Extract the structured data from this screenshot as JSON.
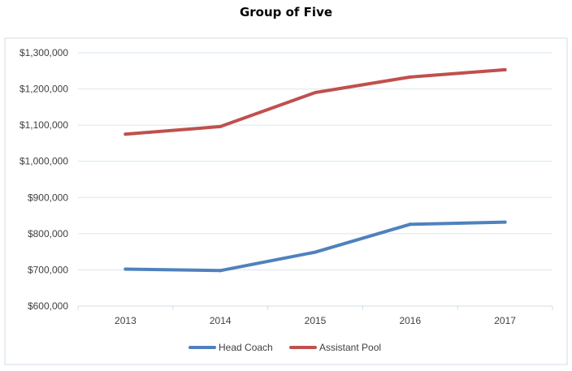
{
  "chart_data": {
    "type": "line",
    "title": "Group of Five",
    "xlabel": "",
    "ylabel": "",
    "categories": [
      "2013",
      "2014",
      "2015",
      "2016",
      "2017"
    ],
    "ylim": [
      600000,
      1300000
    ],
    "ytick_values": [
      600000,
      700000,
      800000,
      900000,
      1000000,
      1100000,
      1200000,
      1300000
    ],
    "ytick_labels": [
      "$600,000",
      "$700,000",
      "$800,000",
      "$900,000",
      "$1,000,000",
      "$1,100,000",
      "$1,200,000",
      "$1,300,000"
    ],
    "grid": true,
    "legend_position": "bottom",
    "series": [
      {
        "name": "Head Coach",
        "color": "#4f81bd",
        "values": [
          702000,
          698000,
          749000,
          826000,
          832000
        ]
      },
      {
        "name": "Assistant Pool",
        "color": "#c0504d",
        "values": [
          1075000,
          1096000,
          1190000,
          1233000,
          1253000
        ]
      }
    ]
  }
}
